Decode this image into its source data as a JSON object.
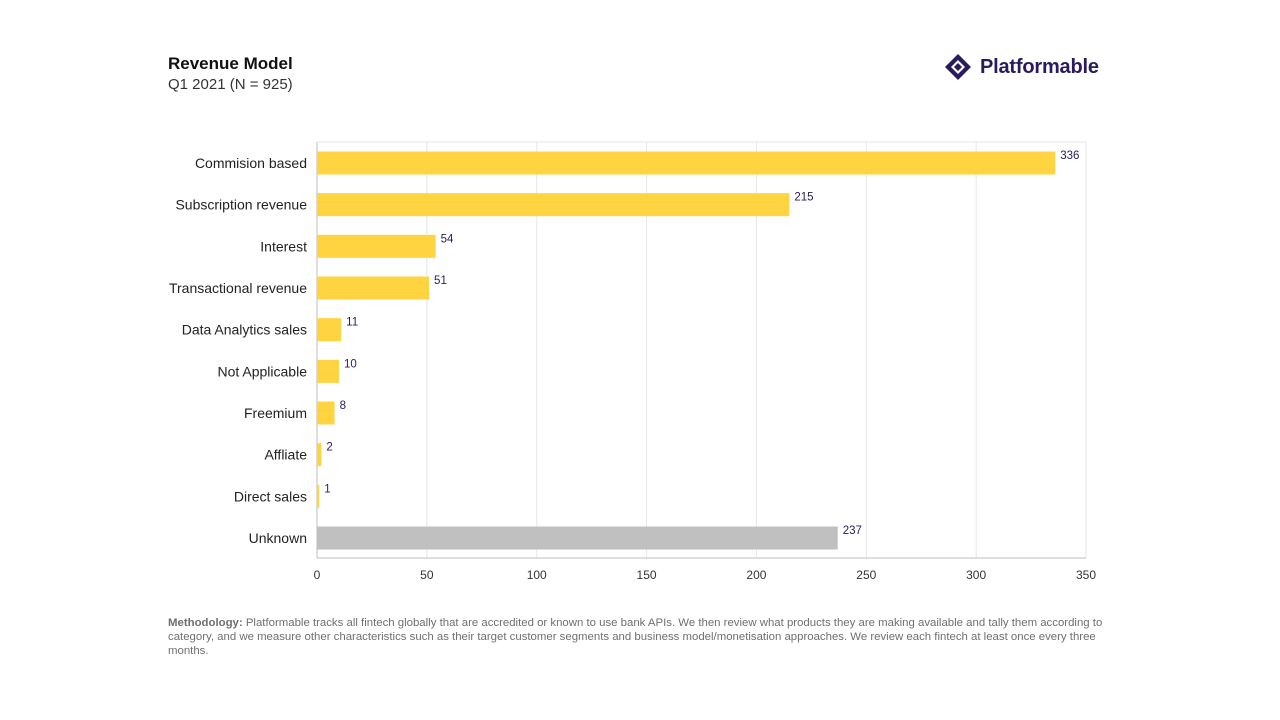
{
  "header": {
    "title": "Revenue Model",
    "subtitle": "Q1 2021 (N = 925)"
  },
  "brand": {
    "name": "Platformable",
    "icon": "diamond-logo-icon",
    "color": "#2a1b5f"
  },
  "chart_data": {
    "type": "bar",
    "orientation": "horizontal",
    "title": "Revenue Model",
    "subtitle": "Q1 2021 (N = 925)",
    "categories": [
      "Commision based",
      "Subscription revenue",
      "Interest",
      "Transactional revenue",
      "Data Analytics sales",
      "Not Applicable",
      "Freemium",
      "Affliate",
      "Direct sales",
      "Unknown"
    ],
    "values": [
      336,
      215,
      54,
      51,
      11,
      10,
      8,
      2,
      1,
      237
    ],
    "bar_colors": [
      "#ffd440",
      "#ffd440",
      "#ffd440",
      "#ffd440",
      "#ffd440",
      "#ffd440",
      "#ffd440",
      "#ffd440",
      "#ffd440",
      "#c0c0c0"
    ],
    "label_color": "#2a1b5f",
    "xlim": [
      0,
      350
    ],
    "xticks": [
      0,
      50,
      100,
      150,
      200,
      250,
      300,
      350
    ],
    "xlabel": "",
    "ylabel": "",
    "grid": true
  },
  "footnote": {
    "label": "Methodology:",
    "text": " Platformable tracks all fintech globally that are accredited or known to use bank APIs. We then review what products they are making available and tally them according to category, and we measure other characteristics such as their target customer segments and business model/monetisation approaches. We review each fintech at least once every three months."
  }
}
